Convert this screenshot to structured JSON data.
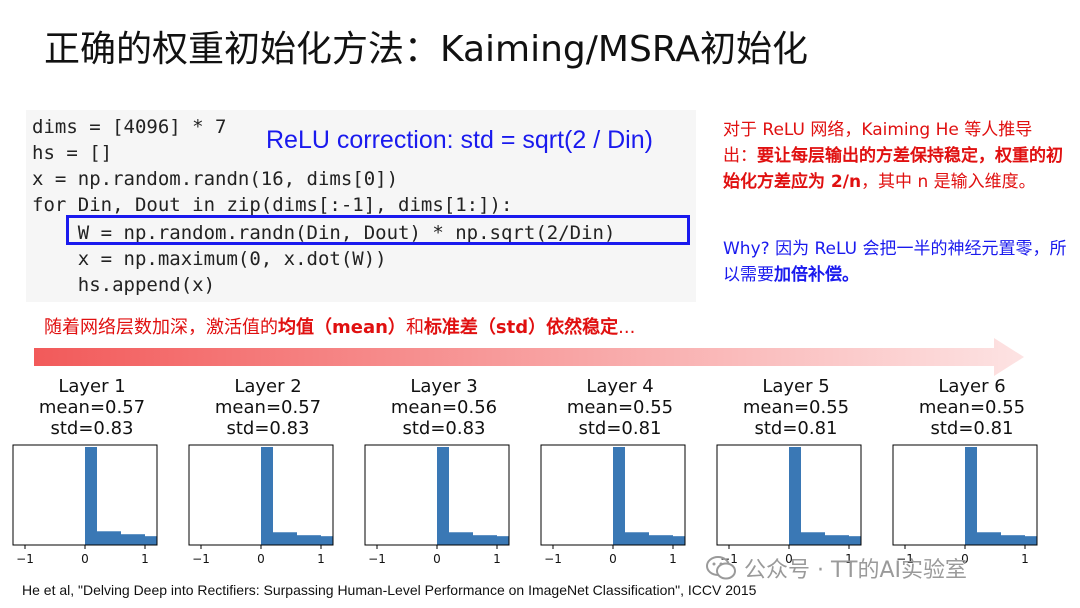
{
  "slide": {
    "title": "正确的权重初始化方法：Kaiming/MSRA初始化",
    "code_lines": [
      "dims = [4096] * 7",
      "hs = []",
      "x = np.random.randn(16, dims[0])",
      "for Din, Dout in zip(dims[:-1], dims[1:]):",
      "    W = np.random.randn(Din, Dout) * np.sqrt(2/Din)",
      "    x = np.maximum(0, x.dot(W))",
      "    hs.append(x)"
    ],
    "code_hint": "ReLU correction: std = sqrt(2 / Din)",
    "note_red": {
      "prefix": "对于 ReLU 网络，Kaiming He 等人推导出：",
      "bold": "要让每层输出的方差保持稳定，权重的初始化方差应为 2/n",
      "suffix": "，其中 n 是输入维度。"
    },
    "note_blue": {
      "prefix": "Why?  因为 ReLU 会把一半的神经元置零，所以需要",
      "bold": "加倍补偿。"
    },
    "trend": {
      "part1": "随着网络层数加深，激活值的",
      "bold1": "均值（mean）",
      "part2": "和",
      "bold2": "标准差（std）依然稳定",
      "part3": "..."
    },
    "citation": "He et al, \"Delving Deep into Rectifiers: Surpassing Human-Level Performance on ImageNet Classification\", ICCV 2015",
    "watermark": "公众号 · TT的AI实验室"
  },
  "colors": {
    "accent_red": "#e01010",
    "accent_blue": "#1a1aee",
    "bar": "#3a78b5",
    "code_bg": "#f6f6f6"
  },
  "chart_data": [
    {
      "type": "bar",
      "title": "Layer 1",
      "subtitle_mean": "mean=0.57",
      "subtitle_std": "std=0.83",
      "x_ticks": [
        "−1",
        "0",
        "1"
      ],
      "xlim": [
        -1.2,
        1.2
      ],
      "bins": [
        {
          "x0": 0,
          "x1": 0.2,
          "value": 1.0
        },
        {
          "x0": 0.2,
          "x1": 0.6,
          "value": 0.14
        },
        {
          "x0": 0.6,
          "x1": 1.0,
          "value": 0.11
        },
        {
          "x0": 1.0,
          "x1": 1.2,
          "value": 0.09
        }
      ]
    },
    {
      "type": "bar",
      "title": "Layer 2",
      "subtitle_mean": "mean=0.57",
      "subtitle_std": "std=0.83",
      "x_ticks": [
        "−1",
        "0",
        "1"
      ],
      "xlim": [
        -1.2,
        1.2
      ],
      "bins": [
        {
          "x0": 0,
          "x1": 0.2,
          "value": 1.0
        },
        {
          "x0": 0.2,
          "x1": 0.6,
          "value": 0.13
        },
        {
          "x0": 0.6,
          "x1": 1.0,
          "value": 0.1
        },
        {
          "x0": 1.0,
          "x1": 1.2,
          "value": 0.09
        }
      ]
    },
    {
      "type": "bar",
      "title": "Layer 3",
      "subtitle_mean": "mean=0.56",
      "subtitle_std": "std=0.83",
      "x_ticks": [
        "−1",
        "0",
        "1"
      ],
      "xlim": [
        -1.2,
        1.2
      ],
      "bins": [
        {
          "x0": 0,
          "x1": 0.2,
          "value": 1.0
        },
        {
          "x0": 0.2,
          "x1": 0.6,
          "value": 0.13
        },
        {
          "x0": 0.6,
          "x1": 1.0,
          "value": 0.1
        },
        {
          "x0": 1.0,
          "x1": 1.2,
          "value": 0.09
        }
      ]
    },
    {
      "type": "bar",
      "title": "Layer 4",
      "subtitle_mean": "mean=0.55",
      "subtitle_std": "std=0.81",
      "x_ticks": [
        "−1",
        "0",
        "1"
      ],
      "xlim": [
        -1.2,
        1.2
      ],
      "bins": [
        {
          "x0": 0,
          "x1": 0.2,
          "value": 1.0
        },
        {
          "x0": 0.2,
          "x1": 0.6,
          "value": 0.13
        },
        {
          "x0": 0.6,
          "x1": 1.0,
          "value": 0.1
        },
        {
          "x0": 1.0,
          "x1": 1.2,
          "value": 0.09
        }
      ]
    },
    {
      "type": "bar",
      "title": "Layer 5",
      "subtitle_mean": "mean=0.55",
      "subtitle_std": "std=0.81",
      "x_ticks": [
        "−1",
        "0",
        "1"
      ],
      "xlim": [
        -1.2,
        1.2
      ],
      "bins": [
        {
          "x0": 0,
          "x1": 0.2,
          "value": 1.0
        },
        {
          "x0": 0.2,
          "x1": 0.6,
          "value": 0.13
        },
        {
          "x0": 0.6,
          "x1": 1.0,
          "value": 0.1
        },
        {
          "x0": 1.0,
          "x1": 1.2,
          "value": 0.09
        }
      ]
    },
    {
      "type": "bar",
      "title": "Layer 6",
      "subtitle_mean": "mean=0.55",
      "subtitle_std": "std=0.81",
      "x_ticks": [
        "−1",
        "0",
        "1"
      ],
      "xlim": [
        -1.2,
        1.2
      ],
      "bins": [
        {
          "x0": 0,
          "x1": 0.2,
          "value": 1.0
        },
        {
          "x0": 0.2,
          "x1": 0.6,
          "value": 0.13
        },
        {
          "x0": 0.6,
          "x1": 1.0,
          "value": 0.1
        },
        {
          "x0": 1.0,
          "x1": 1.2,
          "value": 0.09
        }
      ]
    }
  ]
}
